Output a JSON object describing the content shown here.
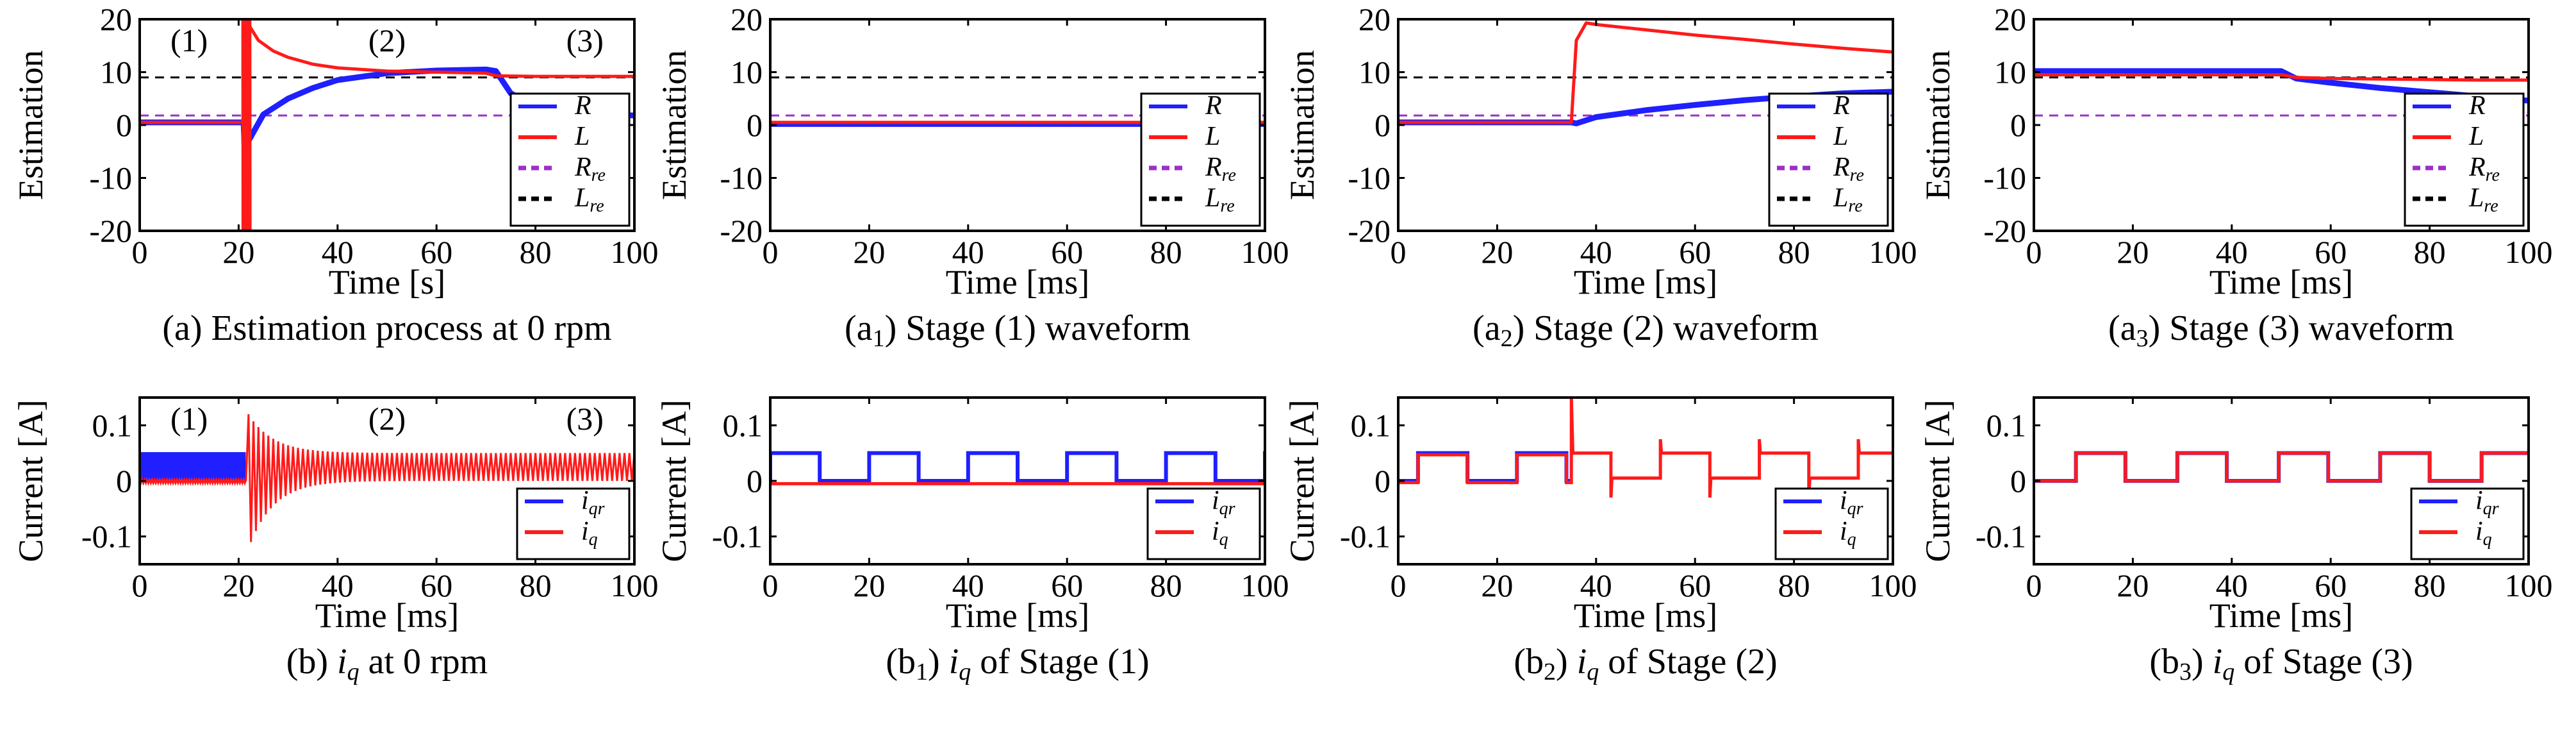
{
  "figure": {
    "colors": {
      "R": "#1f1fff",
      "L": "#ff1a1a",
      "R_re": "#9b30c8",
      "L_re": "#000000",
      "i_qr": "#1f1fff",
      "i_q": "#ff1a1a"
    },
    "stage_labels": [
      "(1)",
      "(2)",
      "(3)"
    ]
  },
  "chart_data": [
    {
      "id": "a",
      "type": "line",
      "caption": {
        "pre": "(a) Estimation process at 0 rpm"
      },
      "xlabel": "Time [s]",
      "ylabel": "Estimation",
      "xlim": [
        0,
        100
      ],
      "ylim": [
        -20,
        20
      ],
      "xticks": [
        "0",
        "20",
        "40",
        "60",
        "80",
        "100"
      ],
      "yticks": [
        "20",
        "10",
        "0",
        "-10",
        "-20"
      ],
      "stage_annotations": true,
      "legend": [
        {
          "main": "R",
          "sub": "",
          "style": "solid",
          "color": "#1f1fff"
        },
        {
          "main": "L",
          "sub": "",
          "style": "solid",
          "color": "#ff1a1a"
        },
        {
          "main": "R",
          "sub": "re",
          "style": "dashed",
          "color": "#9b30c8"
        },
        {
          "main": "L",
          "sub": "re",
          "style": "dashed",
          "color": "#000000"
        }
      ],
      "series": [
        {
          "name": "R",
          "x": [
            0,
            21,
            21.5,
            22,
            25,
            30,
            35,
            40,
            50,
            60,
            70,
            72,
            75,
            80,
            85,
            90,
            100
          ],
          "y": [
            0.5,
            0.5,
            -12,
            -3,
            2,
            5,
            7,
            8.5,
            9.8,
            10.3,
            10.5,
            10.2,
            6,
            3.5,
            2.6,
            2.2,
            1.8
          ]
        },
        {
          "name": "L",
          "x": [
            0,
            21,
            21.5,
            22,
            24,
            27,
            30,
            35,
            40,
            50,
            60,
            70,
            72,
            80,
            100
          ],
          "y": [
            0.5,
            0.5,
            20,
            19,
            16,
            14,
            12.8,
            11.5,
            10.8,
            10.2,
            10,
            9.8,
            9.3,
            9.2,
            9.2
          ]
        },
        {
          "name": "R_re",
          "x": [
            0,
            100
          ],
          "y": [
            1.8,
            1.8
          ]
        },
        {
          "name": "L_re",
          "x": [
            0,
            100
          ],
          "y": [
            9,
            9
          ]
        }
      ]
    },
    {
      "id": "a1",
      "type": "line",
      "caption": {
        "pre": "(a",
        "sub": "1",
        "post": ") Stage (1) waveform"
      },
      "xlabel": "Time [ms]",
      "ylabel": "Estimation",
      "xlim": [
        0,
        100
      ],
      "ylim": [
        -20,
        20
      ],
      "xticks": [
        "0",
        "20",
        "40",
        "60",
        "80",
        "100"
      ],
      "yticks": [
        "20",
        "10",
        "0",
        "-10",
        "-20"
      ],
      "legend": [
        {
          "main": "R",
          "sub": "",
          "style": "solid",
          "color": "#1f1fff"
        },
        {
          "main": "L",
          "sub": "",
          "style": "solid",
          "color": "#ff1a1a"
        },
        {
          "main": "R",
          "sub": "re",
          "style": "dashed",
          "color": "#9b30c8"
        },
        {
          "main": "L",
          "sub": "re",
          "style": "dashed",
          "color": "#000000"
        }
      ],
      "series": [
        {
          "name": "R",
          "x": [
            0,
            100
          ],
          "y": [
            0.2,
            0.2
          ]
        },
        {
          "name": "L",
          "x": [
            0,
            100
          ],
          "y": [
            0.5,
            0.5
          ]
        },
        {
          "name": "R_re",
          "x": [
            0,
            100
          ],
          "y": [
            1.8,
            1.8
          ]
        },
        {
          "name": "L_re",
          "x": [
            0,
            100
          ],
          "y": [
            9,
            9
          ]
        }
      ]
    },
    {
      "id": "a2",
      "type": "line",
      "caption": {
        "pre": "(a",
        "sub": "2",
        "post": ") Stage (2) waveform"
      },
      "xlabel": "Time [ms]",
      "ylabel": "Estimation",
      "xlim": [
        0,
        100
      ],
      "ylim": [
        -20,
        20
      ],
      "xticks": [
        "0",
        "20",
        "40",
        "60",
        "80",
        "100"
      ],
      "yticks": [
        "20",
        "10",
        "0",
        "-10",
        "-20"
      ],
      "legend": [
        {
          "main": "R",
          "sub": "",
          "style": "solid",
          "color": "#1f1fff"
        },
        {
          "main": "L",
          "sub": "",
          "style": "solid",
          "color": "#ff1a1a"
        },
        {
          "main": "R",
          "sub": "re",
          "style": "dashed",
          "color": "#9b30c8"
        },
        {
          "main": "L",
          "sub": "re",
          "style": "dashed",
          "color": "#000000"
        }
      ],
      "series": [
        {
          "name": "R",
          "x": [
            0,
            35,
            36,
            40,
            50,
            60,
            70,
            80,
            90,
            100
          ],
          "y": [
            0.5,
            0.5,
            0.3,
            1.5,
            2.8,
            3.8,
            4.7,
            5.4,
            6,
            6.3
          ]
        },
        {
          "name": "L",
          "x": [
            0,
            35,
            36,
            38,
            40,
            50,
            60,
            70,
            80,
            90,
            100
          ],
          "y": [
            0.5,
            0.5,
            16,
            19.3,
            19,
            18,
            17,
            16.2,
            15.3,
            14.5,
            13.8
          ]
        },
        {
          "name": "R_re",
          "x": [
            0,
            100
          ],
          "y": [
            1.8,
            1.8
          ]
        },
        {
          "name": "L_re",
          "x": [
            0,
            100
          ],
          "y": [
            9,
            9
          ]
        }
      ]
    },
    {
      "id": "a3",
      "type": "line",
      "caption": {
        "pre": "(a",
        "sub": "3",
        "post": ") Stage (3) waveform"
      },
      "xlabel": "Time [ms]",
      "ylabel": "Estimation",
      "xlim": [
        0,
        100
      ],
      "ylim": [
        -20,
        20
      ],
      "xticks": [
        "0",
        "20",
        "40",
        "60",
        "80",
        "100"
      ],
      "yticks": [
        "20",
        "10",
        "0",
        "-10",
        "-20"
      ],
      "legend": [
        {
          "main": "R",
          "sub": "",
          "style": "solid",
          "color": "#1f1fff"
        },
        {
          "main": "L",
          "sub": "",
          "style": "solid",
          "color": "#ff1a1a"
        },
        {
          "main": "R",
          "sub": "re",
          "style": "dashed",
          "color": "#9b30c8"
        },
        {
          "main": "L",
          "sub": "re",
          "style": "dashed",
          "color": "#000000"
        }
      ],
      "series": [
        {
          "name": "R",
          "x": [
            0,
            20,
            40,
            50,
            53,
            60,
            70,
            80,
            90,
            100
          ],
          "y": [
            10.2,
            10.2,
            10.2,
            10.2,
            8.8,
            8,
            7,
            6.2,
            5.4,
            4.6
          ]
        },
        {
          "name": "L",
          "x": [
            0,
            50,
            53,
            60,
            70,
            80,
            90,
            100
          ],
          "y": [
            9.5,
            9.5,
            9,
            8.8,
            8.7,
            8.6,
            8.5,
            8.5
          ]
        },
        {
          "name": "R_re",
          "x": [
            0,
            100
          ],
          "y": [
            1.8,
            1.8
          ]
        },
        {
          "name": "L_re",
          "x": [
            0,
            100
          ],
          "y": [
            9,
            9
          ]
        }
      ]
    },
    {
      "id": "b",
      "type": "line",
      "caption": {
        "pre": "(b) ",
        "it": "i",
        "itsub": "q",
        "post": " at 0 rpm"
      },
      "xlabel": "Time [ms]",
      "ylabel": "Current [A]",
      "xlim": [
        0,
        100
      ],
      "ylim": [
        -0.15,
        0.15
      ],
      "xticks": [
        "0",
        "20",
        "40",
        "60",
        "80",
        "100"
      ],
      "yticks": [
        "0.1",
        "0",
        "-0.1"
      ],
      "yticks_values": [
        0.1,
        0,
        -0.1
      ],
      "stage_annotations": true,
      "legend": [
        {
          "main": "i",
          "sub": "qr",
          "style": "solid",
          "color": "#1f1fff"
        },
        {
          "main": "i",
          "sub": "q",
          "style": "solid",
          "color": "#ff1a1a"
        }
      ],
      "signal": {
        "kind": "overview",
        "high": 0.05,
        "low": 0,
        "switch": 21.5,
        "spike_max": 0.12,
        "spike_min": -0.11
      }
    },
    {
      "id": "b1",
      "type": "line",
      "caption": {
        "pre": "(b",
        "sub": "1",
        "post": ") ",
        "it": "i",
        "itsub": "q",
        "post2": " of Stage (1)"
      },
      "xlabel": "Time [ms]",
      "ylabel": "Current [A]",
      "xlim": [
        0,
        100
      ],
      "ylim": [
        -0.15,
        0.15
      ],
      "xticks": [
        "0",
        "20",
        "40",
        "60",
        "80",
        "100"
      ],
      "yticks": [
        "0.1",
        "0",
        "-0.1"
      ],
      "yticks_values": [
        0.1,
        0,
        -0.1
      ],
      "legend": [
        {
          "main": "i",
          "sub": "qr",
          "style": "solid",
          "color": "#1f1fff"
        },
        {
          "main": "i",
          "sub": "q",
          "style": "solid",
          "color": "#ff1a1a"
        }
      ],
      "signal": {
        "kind": "square",
        "period": 20,
        "rise": 0,
        "duty": 10,
        "high": 0.05,
        "low": 0,
        "iq_high": -0.005,
        "iq_low": -0.005
      }
    },
    {
      "id": "b2",
      "type": "line",
      "caption": {
        "pre": "(b",
        "sub": "2",
        "post": ") ",
        "it": "i",
        "itsub": "q",
        "post2": " of Stage (2)"
      },
      "xlabel": "Time [ms]",
      "ylabel": "Current [A]",
      "xlim": [
        0,
        100
      ],
      "ylim": [
        -0.15,
        0.15
      ],
      "xticks": [
        "0",
        "20",
        "40",
        "60",
        "80",
        "100"
      ],
      "yticks": [
        "0.1",
        "0",
        "-0.1"
      ],
      "yticks_values": [
        0.1,
        0,
        -0.1
      ],
      "legend": [
        {
          "main": "i",
          "sub": "qr",
          "style": "solid",
          "color": "#1f1fff"
        },
        {
          "main": "i",
          "sub": "q",
          "style": "solid",
          "color": "#ff1a1a"
        }
      ],
      "signal": {
        "kind": "stage2",
        "period": 20,
        "rise": 14,
        "duty": 10,
        "high": 0.05,
        "low": 0,
        "switch": 35,
        "spike": 0.15
      }
    },
    {
      "id": "b3",
      "type": "line",
      "caption": {
        "pre": "(b",
        "sub": "3",
        "post": ") ",
        "it": "i",
        "itsub": "q",
        "post2": " of Stage (3)"
      },
      "xlabel": "Time [ms]",
      "ylabel": "Current [A]",
      "xlim": [
        0,
        100
      ],
      "ylim": [
        -0.15,
        0.15
      ],
      "xticks": [
        "0",
        "20",
        "40",
        "60",
        "80",
        "100"
      ],
      "yticks": [
        "0.1",
        "0",
        "-0.1"
      ],
      "yticks_values": [
        0.1,
        0,
        -0.1
      ],
      "legend": [
        {
          "main": "i",
          "sub": "qr",
          "style": "solid",
          "color": "#1f1fff"
        },
        {
          "main": "i",
          "sub": "q",
          "style": "solid",
          "color": "#ff1a1a"
        }
      ],
      "signal": {
        "kind": "square",
        "period": 20.5,
        "rise": 8.5,
        "duty": 10,
        "high": 0.05,
        "low": 0,
        "iq_high": 0.05,
        "iq_low": 0
      }
    }
  ]
}
